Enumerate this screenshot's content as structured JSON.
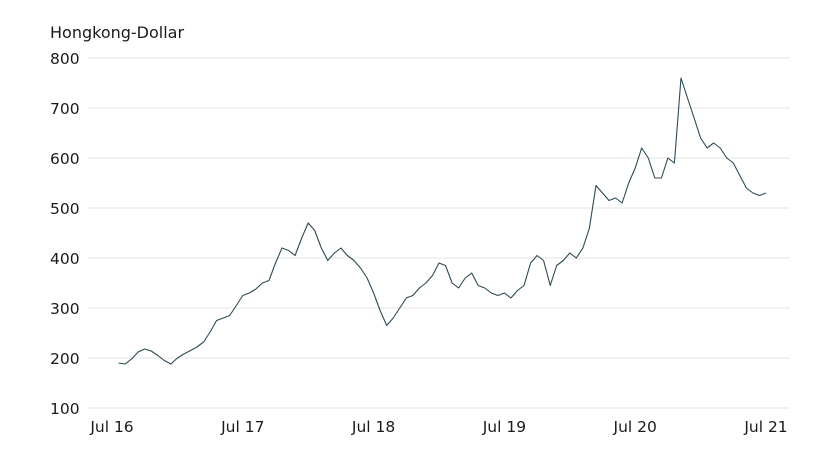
{
  "chart_data": {
    "type": "line",
    "ylabel": "Hongkong-Dollar",
    "ylim": [
      100,
      800
    ],
    "yticks": [
      800,
      700,
      600,
      500,
      400,
      300,
      200,
      100
    ],
    "x_tick_labels": [
      "Jul 16",
      "Jul 17",
      "Jul 18",
      "Jul 19",
      "Jul 20",
      "Jul 21"
    ],
    "xlim": [
      2016.5,
      2021.5
    ],
    "grid": "horizontal",
    "line_color": "#2b4a55",
    "series": [
      {
        "x": [
          2016.55,
          2016.6,
          2016.65,
          2016.7,
          2016.75,
          2016.8,
          2016.85,
          2016.9,
          2016.95,
          2017.0,
          2017.05,
          2017.1,
          2017.15,
          2017.2,
          2017.25,
          2017.3,
          2017.35,
          2017.4,
          2017.45,
          2017.5,
          2017.55,
          2017.6,
          2017.65,
          2017.7,
          2017.75,
          2017.8,
          2017.85,
          2017.9,
          2017.95,
          2018.0,
          2018.05,
          2018.1,
          2018.15,
          2018.2,
          2018.25,
          2018.3,
          2018.35,
          2018.4,
          2018.45,
          2018.5,
          2018.55,
          2018.6,
          2018.65,
          2018.7,
          2018.75,
          2018.8,
          2018.85,
          2018.9,
          2018.95,
          2019.0,
          2019.05,
          2019.1,
          2019.15,
          2019.2,
          2019.25,
          2019.3,
          2019.35,
          2019.4,
          2019.45,
          2019.5,
          2019.55,
          2019.6,
          2019.65,
          2019.7,
          2019.75,
          2019.8,
          2019.85,
          2019.9,
          2019.95,
          2020.0,
          2020.05,
          2020.1,
          2020.15,
          2020.2,
          2020.25,
          2020.3,
          2020.35,
          2020.4,
          2020.45,
          2020.5,
          2020.55,
          2020.6,
          2020.65,
          2020.7,
          2020.75,
          2020.8,
          2020.85,
          2020.9,
          2020.95,
          2021.0,
          2021.05,
          2021.1,
          2021.15,
          2021.2,
          2021.25,
          2021.3,
          2021.35,
          2021.4,
          2021.45,
          2021.5
        ],
        "values": [
          190,
          188,
          198,
          212,
          218,
          214,
          205,
          195,
          188,
          200,
          208,
          215,
          222,
          232,
          252,
          275,
          280,
          285,
          305,
          325,
          330,
          338,
          350,
          355,
          390,
          420,
          415,
          405,
          440,
          470,
          455,
          420,
          395,
          410,
          420,
          405,
          395,
          380,
          360,
          330,
          295,
          265,
          280,
          300,
          320,
          325,
          340,
          350,
          365,
          390,
          385,
          350,
          340,
          360,
          370,
          345,
          340,
          330,
          325,
          330,
          320,
          335,
          345,
          390,
          405,
          395,
          345,
          385,
          395,
          410,
          400,
          420,
          460,
          545,
          530,
          515,
          520,
          510,
          550,
          580,
          620,
          600,
          560,
          560,
          600,
          590,
          760,
          720,
          680,
          640,
          620,
          630,
          620,
          600,
          590,
          565,
          540,
          530,
          525,
          530
        ]
      }
    ]
  }
}
